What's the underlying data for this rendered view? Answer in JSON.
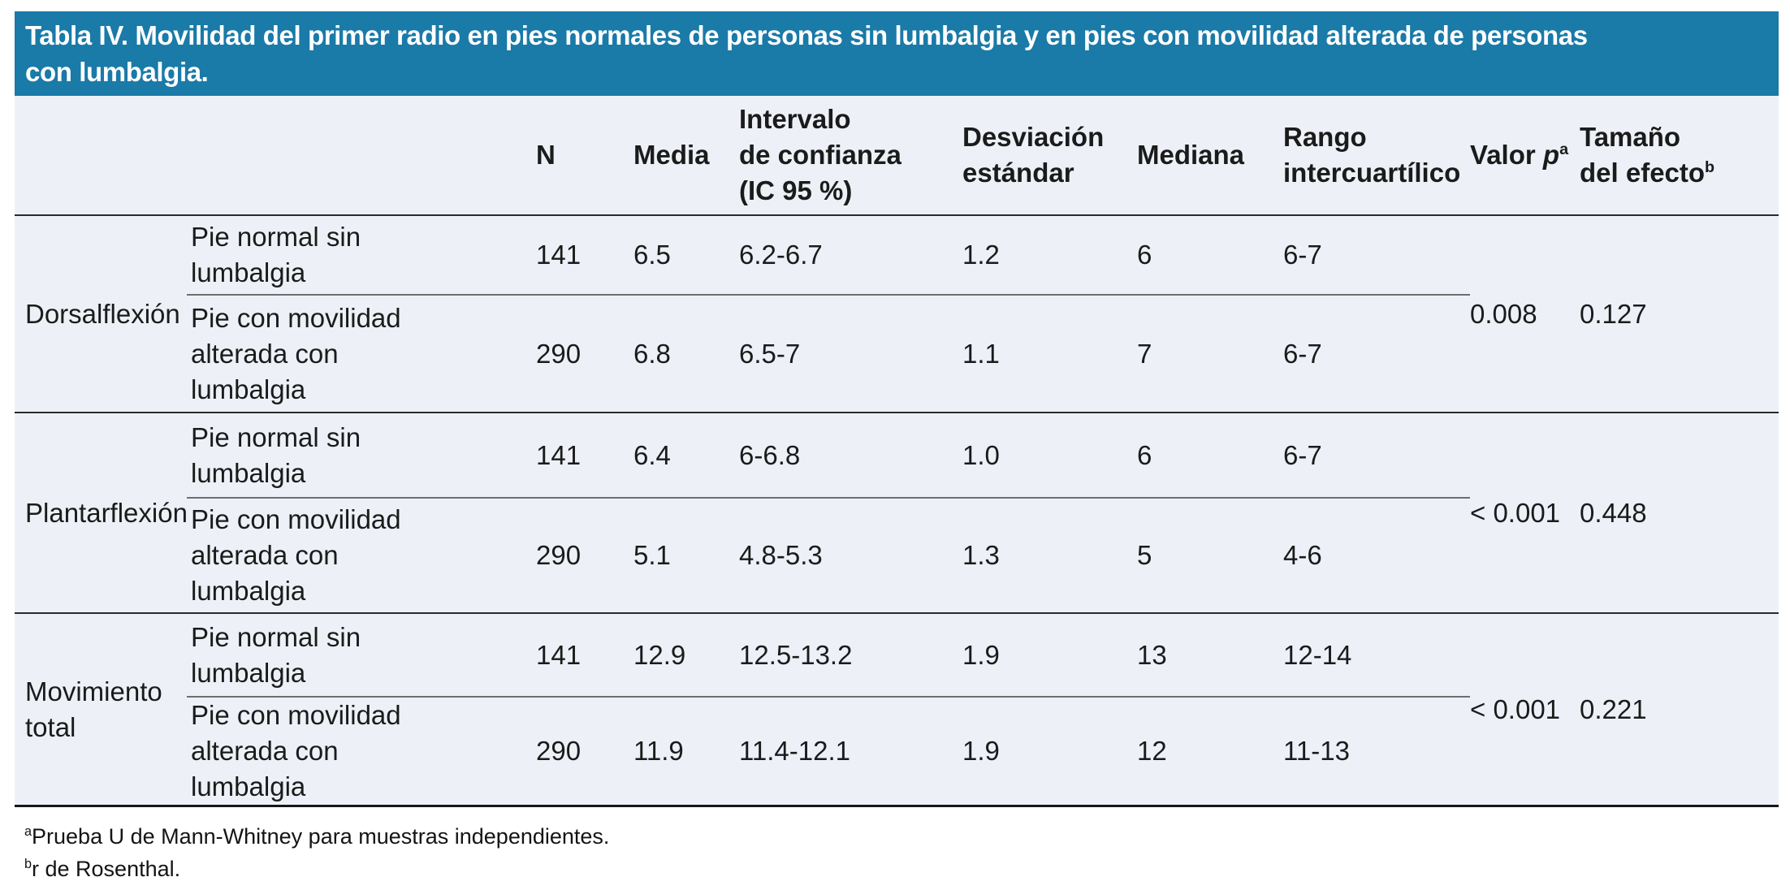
{
  "title": "Tabla IV. Movilidad del primer radio en pies normales de personas sin lumbalgia y en pies con movilidad alterada de personas\ncon lumbalgia.",
  "colors": {
    "title_bar_bg": "#1a7aa8",
    "title_text": "#ffffff",
    "body_bg": "#edf1f7",
    "rule_dark": "#2a2a2a",
    "rule_light": "#6e6e6e",
    "text": "#1b1b1b"
  },
  "columns": {
    "section": "",
    "group": "",
    "n": "N",
    "media": "Media",
    "ic": "Intervalo\nde confianza\n(IC 95 %)",
    "de": "Desviación\nestándar",
    "mediana": "Mediana",
    "rango": "Rango\nintercuartílico",
    "valor": {
      "text": "Valor",
      "p": "p",
      "sup": "a"
    },
    "tamano": {
      "line1": "Tamaño",
      "line2": "del efecto",
      "sup": "b"
    }
  },
  "sections": [
    {
      "name": "Dorsalflexión",
      "p": "0.008",
      "effect": "0.127",
      "rows": [
        {
          "group": "Pie normal sin\nlumbalgia",
          "n": "141",
          "media": "6.5",
          "ic": "6.2-6.7",
          "de": "1.2",
          "mediana": "6",
          "rango": "6-7"
        },
        {
          "group": "Pie con movilidad\nalterada con\nlumbalgia",
          "n": "290",
          "media": "6.8",
          "ic": "6.5-7",
          "de": "1.1",
          "mediana": "7",
          "rango": "6-7"
        }
      ]
    },
    {
      "name": "Plantarflexión",
      "p": "< 0.001",
      "effect": "0.448",
      "rows": [
        {
          "group": "Pie normal sin\nlumbalgia",
          "n": "141",
          "media": "6.4",
          "ic": "6-6.8",
          "de": "1.0",
          "mediana": "6",
          "rango": "6-7"
        },
        {
          "group": "Pie con movilidad\nalterada con\nlumbalgia",
          "n": "290",
          "media": "5.1",
          "ic": "4.8-5.3",
          "de": "1.3",
          "mediana": "5",
          "rango": "4-6"
        }
      ]
    },
    {
      "name": "Movimiento total",
      "p": "< 0.001",
      "effect": "0.221",
      "rows": [
        {
          "group": "Pie normal sin\nlumbalgia",
          "n": "141",
          "media": "12.9",
          "ic": "12.5-13.2",
          "de": "1.9",
          "mediana": "13",
          "rango": "12-14"
        },
        {
          "group": "Pie con movilidad\nalterada con\nlumbalgia",
          "n": "290",
          "media": "11.9",
          "ic": "11.4-12.1",
          "de": "1.9",
          "mediana": "12",
          "rango": "11-13"
        }
      ]
    }
  ],
  "footnotes": [
    {
      "sup": "a",
      "text": "Prueba U de Mann-Whitney para muestras independientes."
    },
    {
      "sup": "b",
      "text": "r de Rosenthal."
    }
  ]
}
